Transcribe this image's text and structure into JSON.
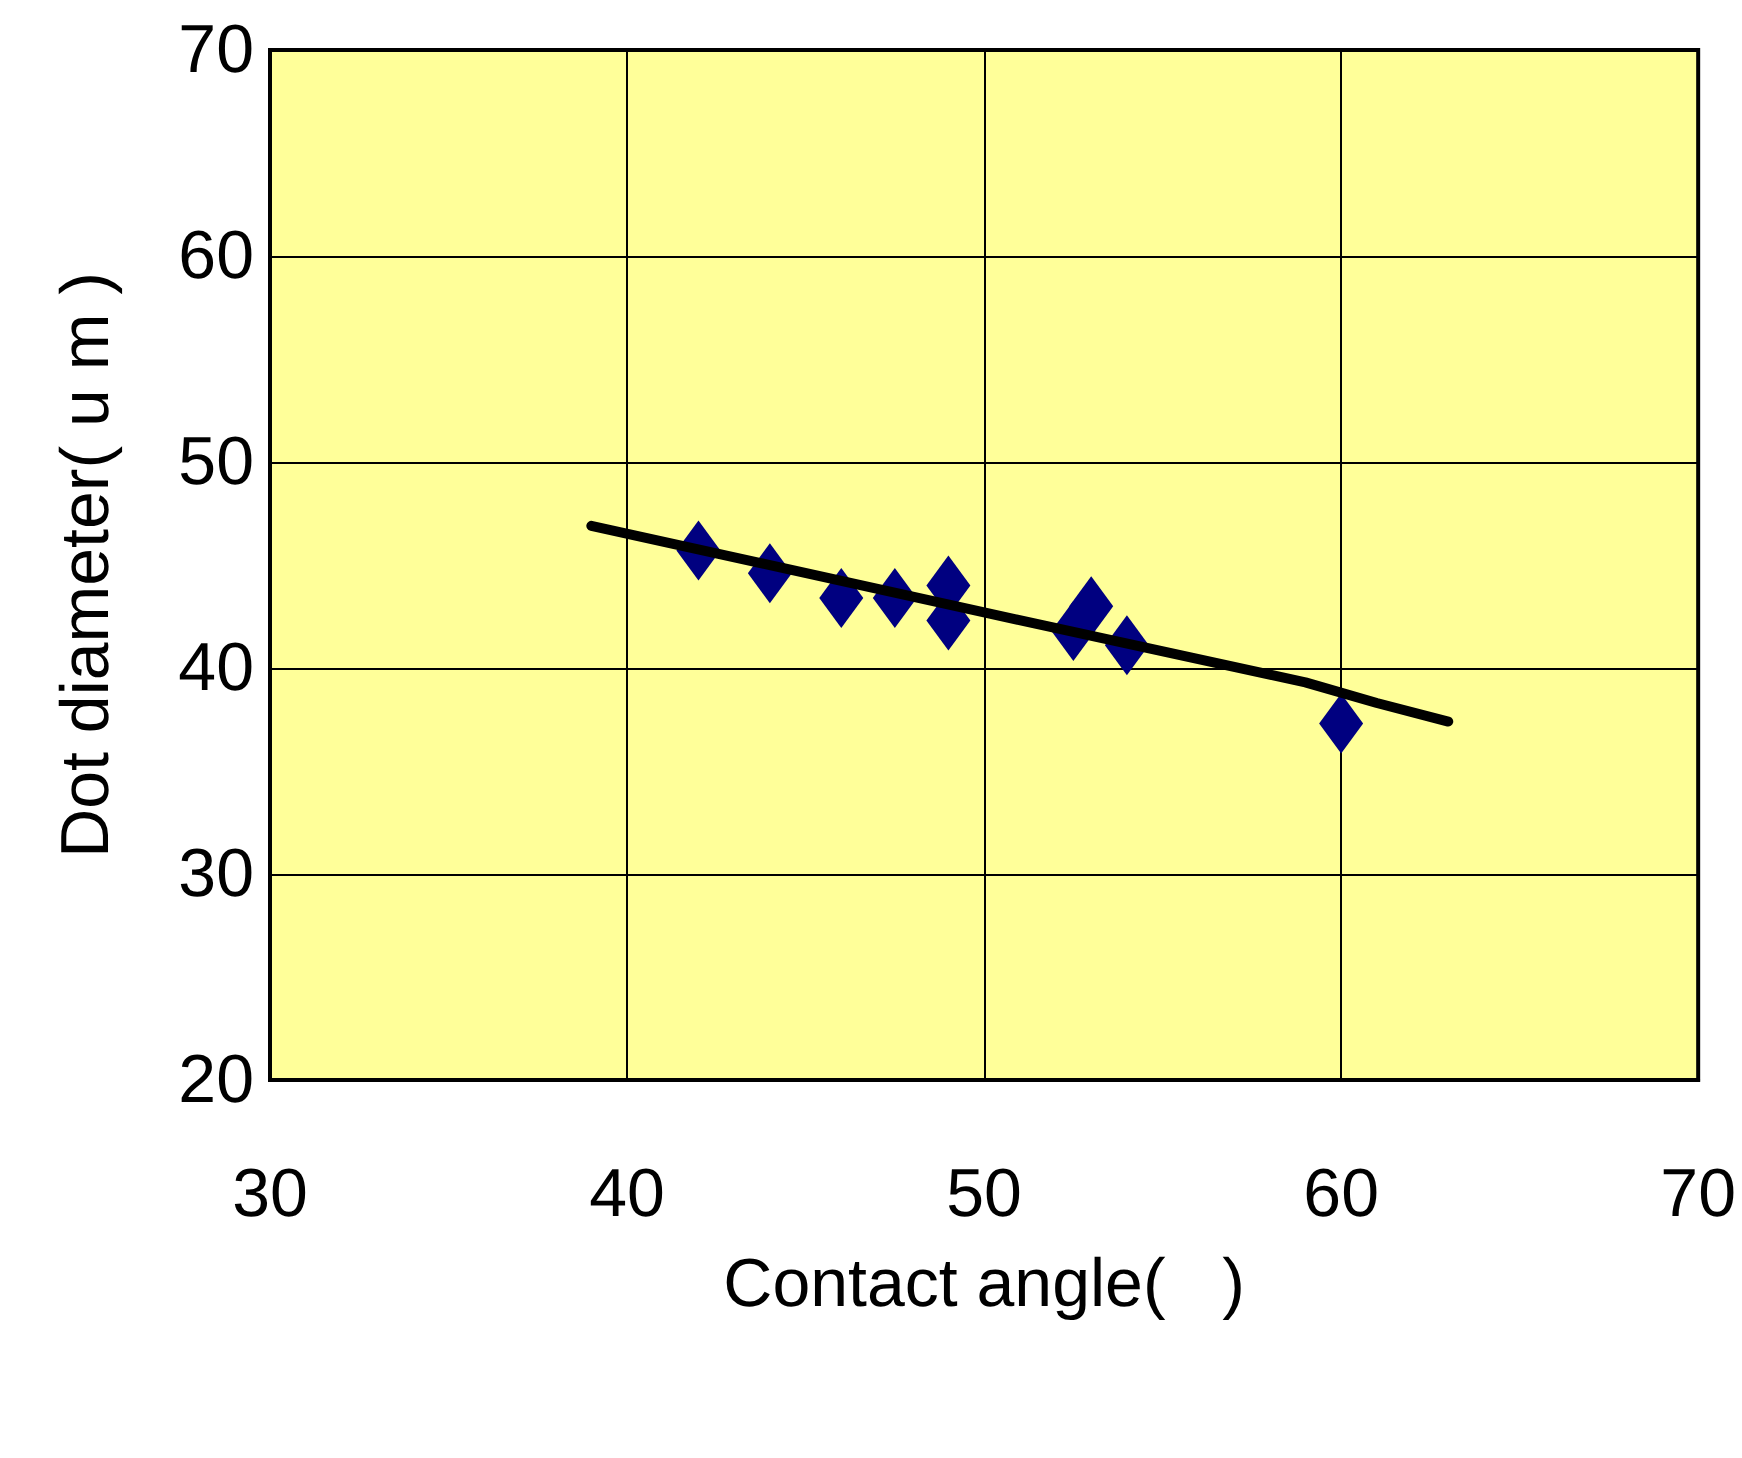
{
  "chart_data": {
    "type": "scatter",
    "xlabel": "Contact angle(   )",
    "ylabel": "Dot diameter( u m )",
    "xlim": [
      30,
      70
    ],
    "xticks": [
      30,
      40,
      50,
      60,
      70
    ],
    "ylim": [
      20,
      70
    ],
    "yticks": [
      20,
      30,
      40,
      50,
      60,
      70
    ],
    "grid": true,
    "marker": "diamond",
    "series": [
      {
        "color": "#000080",
        "x": [
          42,
          44,
          46,
          47.5,
          49,
          49,
          52.5,
          53,
          54,
          60
        ],
        "values": [
          45.7,
          44.6,
          43.4,
          43.4,
          44.0,
          42.3,
          41.8,
          43.0,
          41.1,
          37.3
        ]
      },
      {
        "type": "line",
        "color": "#000000",
        "marker": "none",
        "x": [
          39,
          50,
          59,
          61,
          63
        ],
        "values": [
          46.9,
          42.7,
          39.3,
          38.3,
          37.4
        ]
      }
    ]
  }
}
